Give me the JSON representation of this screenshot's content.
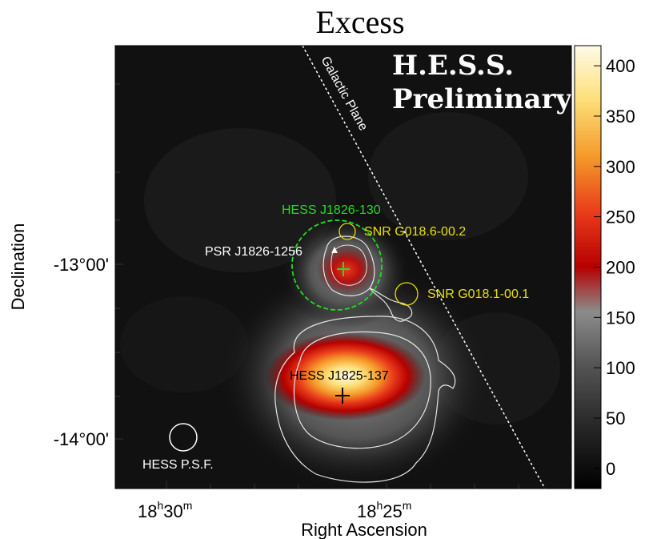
{
  "chart_data": {
    "type": "heatmap",
    "title": "Excess",
    "xlabel": "Right Ascension",
    "ylabel": "Declination",
    "x_ticks": [
      {
        "label_main": "18",
        "label_sup1": "h",
        "label_mid": "30",
        "label_sup2": "m"
      },
      {
        "label_main": "18",
        "label_sup1": "h",
        "label_mid": "25",
        "label_sup2": "m"
      }
    ],
    "y_ticks": [
      "-13°00'",
      "-14°00'"
    ],
    "colorbar": {
      "ticks": [
        0,
        50,
        100,
        150,
        200,
        250,
        300,
        350,
        400
      ],
      "range": [
        -20,
        420
      ],
      "colormap": [
        "#000000",
        "#2a2a2a",
        "#555555",
        "#8c8c8c",
        "#b60000",
        "#e83a1a",
        "#f59a2a",
        "#fde07a",
        "#fffbe8"
      ]
    },
    "watermark": {
      "line1": "H.E.S.S.",
      "line2": "Preliminary"
    },
    "sources": [
      {
        "name": "HESS J1825-137",
        "kind": "hess",
        "peak_excess": 410,
        "marker": "+",
        "color": "#000000"
      },
      {
        "name": "HESS J1826-130",
        "kind": "hess",
        "peak_excess": 230,
        "marker": "+",
        "color": "#22dd22"
      },
      {
        "name": "PSR J1826-1256",
        "kind": "pulsar",
        "marker": "triangle",
        "color": "#ffffff"
      },
      {
        "name": "SNR G018.6-00.2",
        "kind": "snr",
        "color": "#e8e000"
      },
      {
        "name": "SNR G018.1-00.1",
        "kind": "snr",
        "color": "#e8e000"
      },
      {
        "name": "HESS P.S.F.",
        "kind": "psf",
        "color": "#ffffff"
      }
    ],
    "galactic_plane_label": "Galactic Plane",
    "grid": false
  }
}
